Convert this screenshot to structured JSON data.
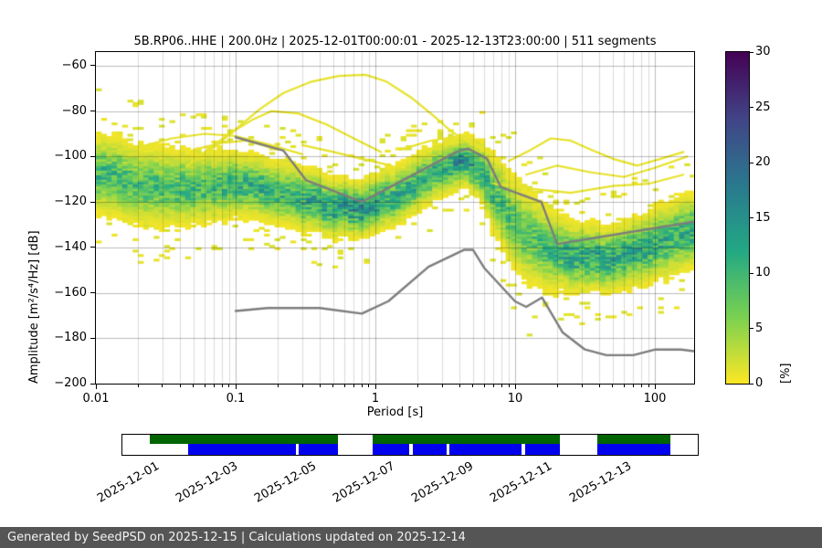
{
  "chart_data": {
    "type": "heatmap",
    "title": "5B.RP06..HHE | 200.0Hz | 2025-12-01T00:00:01 - 2025-12-13T23:00:00 | 511 segments",
    "xlabel": "Period [s]",
    "ylabel": "Amplitude [m²/s⁴/Hz] [dB]",
    "x_scale": "log",
    "xlim": [
      0.01,
      191
    ],
    "ylim": [
      -200,
      -54
    ],
    "x_ticks": [
      0.01,
      0.1,
      1,
      10,
      100
    ],
    "x_tick_labels": [
      "0.01",
      "0.1",
      "1",
      "10",
      "100"
    ],
    "y_ticks": [
      -60,
      -80,
      -100,
      -120,
      -140,
      -160,
      -180,
      -200
    ],
    "y_tick_labels": [
      "−60",
      "−80",
      "−100",
      "−120",
      "−140",
      "−160",
      "−180",
      "−200"
    ],
    "grid": true,
    "colorbar": {
      "label": "[%]",
      "min": 0,
      "max": 30,
      "ticks": [
        0,
        5,
        10,
        15,
        20,
        25,
        30
      ],
      "gradient_bottom_to_top": [
        "#fde725",
        "#7ad151",
        "#22a884",
        "#2a788e",
        "#414487",
        "#440154"
      ]
    },
    "psd_distribution": {
      "description": "PPSD probability cloud ridge: [period_s, center_dB, sigma_dB, peak_percent]",
      "period_log_bin": 0.0376,
      "db_bin": 1,
      "centers": [
        [
          0.01,
          -107,
          7.5,
          10
        ],
        [
          0.03,
          -114,
          7.5,
          9
        ],
        [
          0.07,
          -113,
          6.5,
          10
        ],
        [
          0.12,
          -112,
          6.0,
          11
        ],
        [
          0.25,
          -117,
          6.0,
          11
        ],
        [
          0.5,
          -122,
          5.5,
          13
        ],
        [
          0.75,
          -123,
          5.0,
          15
        ],
        [
          1.2,
          -119,
          5.5,
          12
        ],
        [
          2.0,
          -111,
          5.5,
          11
        ],
        [
          3.0,
          -105,
          5.0,
          12
        ],
        [
          4.5,
          -101,
          4.5,
          15
        ],
        [
          6.0,
          -108,
          6.0,
          11
        ],
        [
          8.0,
          -121,
          8.0,
          9
        ],
        [
          11.0,
          -133,
          9.0,
          8
        ],
        [
          16.0,
          -140,
          8.0,
          9
        ],
        [
          25.0,
          -144,
          6.5,
          12
        ],
        [
          45.0,
          -145,
          6.0,
          13
        ],
        [
          80.0,
          -141,
          6.5,
          12
        ],
        [
          130.0,
          -136,
          7.0,
          11
        ],
        [
          191.0,
          -132,
          7.0,
          11
        ]
      ]
    },
    "outlier_traces": [
      [
        [
          0.045,
          -104
        ],
        [
          0.07,
          -96
        ],
        [
          0.1,
          -88
        ],
        [
          0.15,
          -79
        ],
        [
          0.22,
          -72
        ],
        [
          0.35,
          -67
        ],
        [
          0.55,
          -64.5
        ],
        [
          0.85,
          -64
        ],
        [
          1.2,
          -67
        ],
        [
          1.8,
          -74
        ],
        [
          2.6,
          -82
        ],
        [
          3.5,
          -89
        ],
        [
          5,
          -95
        ],
        [
          7,
          -99
        ]
      ],
      [
        [
          0.06,
          -98
        ],
        [
          0.09,
          -90
        ],
        [
          0.13,
          -84
        ],
        [
          0.18,
          -80
        ],
        [
          0.28,
          -81
        ],
        [
          0.45,
          -86
        ],
        [
          0.7,
          -92
        ],
        [
          1.1,
          -98
        ]
      ],
      [
        [
          0.02,
          -96
        ],
        [
          0.035,
          -92
        ],
        [
          0.06,
          -90
        ],
        [
          0.1,
          -91
        ],
        [
          0.18,
          -95
        ],
        [
          0.3,
          -99
        ]
      ],
      [
        [
          9,
          -102
        ],
        [
          13,
          -97
        ],
        [
          18,
          -92
        ],
        [
          25,
          -93
        ],
        [
          35,
          -97
        ],
        [
          50,
          -101
        ],
        [
          75,
          -104
        ],
        [
          110,
          -101
        ],
        [
          160,
          -98
        ]
      ],
      [
        [
          12,
          -108
        ],
        [
          20,
          -104
        ],
        [
          35,
          -107
        ],
        [
          60,
          -109
        ],
        [
          100,
          -105
        ],
        [
          170,
          -100
        ]
      ],
      [
        [
          7,
          -112
        ],
        [
          12,
          -114
        ],
        [
          25,
          -116
        ],
        [
          50,
          -113
        ],
        [
          90,
          -112
        ],
        [
          160,
          -108
        ]
      ],
      [
        [
          0.05,
          -97
        ],
        [
          0.08,
          -94
        ],
        [
          0.12,
          -93
        ],
        [
          0.2,
          -97
        ]
      ],
      [
        [
          0.3,
          -95
        ],
        [
          0.5,
          -98
        ],
        [
          0.8,
          -101
        ],
        [
          1.3,
          -104
        ]
      ],
      [
        [
          1.5,
          -97
        ],
        [
          2.5,
          -93
        ],
        [
          4,
          -91
        ],
        [
          5.5,
          -95
        ]
      ]
    ],
    "noise_models": {
      "color": "#7d7d7d",
      "nhnm": [
        [
          0.1,
          -91.5
        ],
        [
          0.22,
          -97.4
        ],
        [
          0.32,
          -110.5
        ],
        [
          0.8,
          -120
        ],
        [
          3.8,
          -98
        ],
        [
          4.6,
          -96.5
        ],
        [
          6.3,
          -101
        ],
        [
          7.9,
          -113.5
        ],
        [
          15.4,
          -120
        ],
        [
          20,
          -138.5
        ],
        [
          191,
          -128.7
        ]
      ],
      "nlnm": [
        [
          0.1,
          -168
        ],
        [
          0.17,
          -166.7
        ],
        [
          0.4,
          -166.7
        ],
        [
          0.8,
          -169.2
        ],
        [
          1.24,
          -163.7
        ],
        [
          2.4,
          -148.6
        ],
        [
          4.3,
          -141.1
        ],
        [
          5,
          -141.1
        ],
        [
          6,
          -149
        ],
        [
          10,
          -163.8
        ],
        [
          12,
          -166.2
        ],
        [
          15.6,
          -162.1
        ],
        [
          21.9,
          -177.5
        ],
        [
          31.6,
          -185
        ],
        [
          45,
          -187.5
        ],
        [
          70,
          -187.5
        ],
        [
          101,
          -185
        ],
        [
          154,
          -185
        ],
        [
          191,
          -185.7
        ]
      ]
    }
  },
  "coverage": {
    "green_color": "#006400",
    "blue_color": "#0000ee",
    "green_segments": [
      [
        0.047,
        0.375
      ],
      [
        0.435,
        0.76
      ],
      [
        0.826,
        0.952
      ]
    ],
    "blue_segments": [
      [
        0.114,
        0.302
      ],
      [
        0.307,
        0.375
      ],
      [
        0.435,
        0.499
      ],
      [
        0.505,
        0.563
      ],
      [
        0.568,
        0.694
      ],
      [
        0.7,
        0.76
      ],
      [
        0.826,
        0.952
      ]
    ],
    "date_ticks": [
      {
        "label": "2025-12-01",
        "pos": 0.0585
      },
      {
        "label": "2025-12-03",
        "pos": 0.1946
      },
      {
        "label": "2025-12-05",
        "pos": 0.3307
      },
      {
        "label": "2025-12-07",
        "pos": 0.4668
      },
      {
        "label": "2025-12-09",
        "pos": 0.6029
      },
      {
        "label": "2025-12-11",
        "pos": 0.739
      },
      {
        "label": "2025-12-13",
        "pos": 0.8751
      }
    ]
  },
  "footer": {
    "text": "Generated by SeedPSD on 2025-12-15 | Calculations updated on 2025-12-14"
  }
}
